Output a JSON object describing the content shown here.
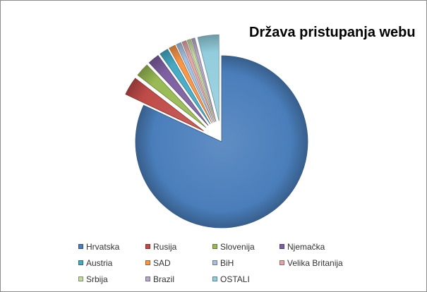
{
  "chart_data": {
    "type": "pie",
    "title": "Država pristupanja webu",
    "legend_position": "bottom",
    "start_angle_deg": 0,
    "direction": "clockwise",
    "exploded": true,
    "series": [
      {
        "name": "",
        "categories": [
          "Hrvatska",
          "Rusija",
          "Slovenija",
          "Njemačka",
          "Austria",
          "SAD",
          "BiH",
          "Velika Britanija",
          "Srbija",
          "Brazil",
          "OSTALI"
        ],
        "values": [
          80.5,
          3.4,
          2.5,
          2.1,
          1.6,
          1.2,
          0.9,
          0.8,
          0.7,
          0.6,
          3.9
        ]
      }
    ],
    "colors": [
      "#4a7ebb",
      "#be4b48",
      "#98b954",
      "#7d60a0",
      "#46aac5",
      "#f79646",
      "#a7c0e0",
      "#e0a7a6",
      "#c6d8a3",
      "#b6a8c9",
      "#93cddd"
    ]
  }
}
